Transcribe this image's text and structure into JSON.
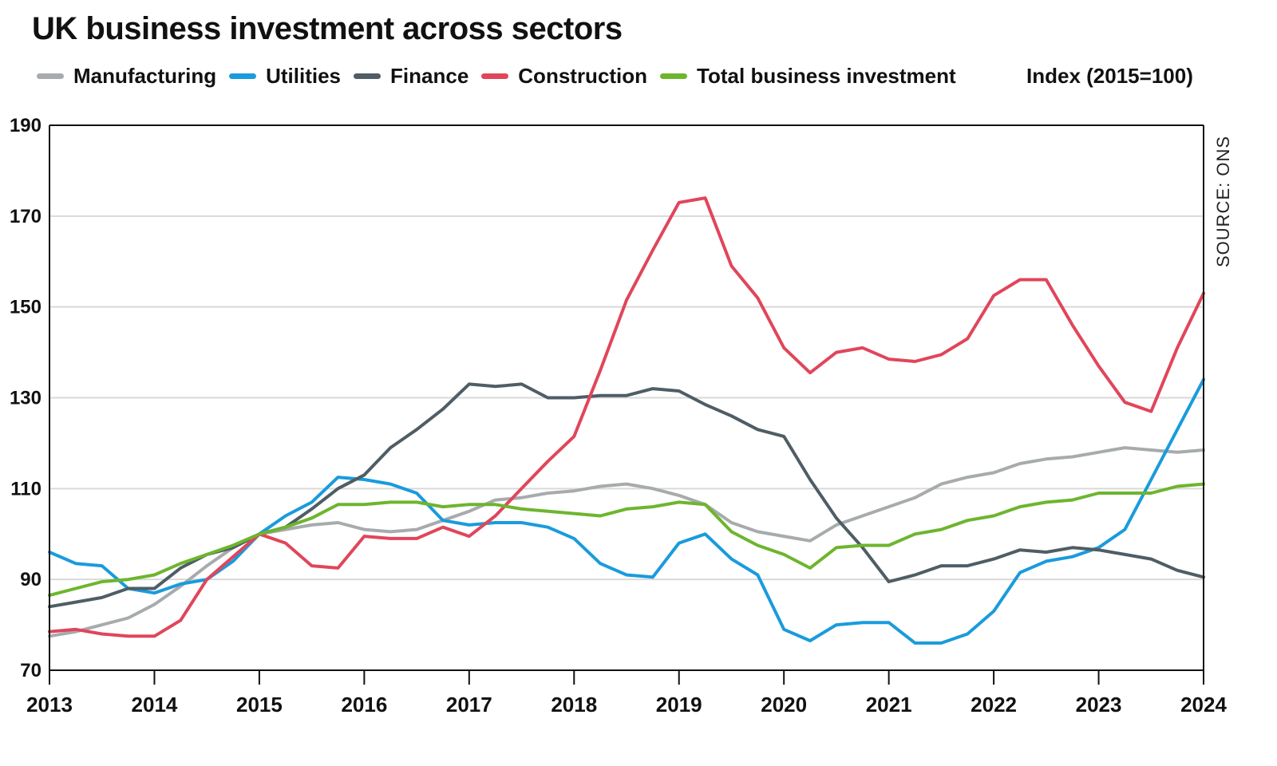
{
  "title": "UK business investment across sectors",
  "units_label": "Index (2015=100)",
  "source_label": "SOURCE: ONS",
  "legend": [
    {
      "name": "Manufacturing",
      "color": "#a7abad"
    },
    {
      "name": "Utilities",
      "color": "#1a9bdc"
    },
    {
      "name": "Finance",
      "color": "#4f5d65"
    },
    {
      "name": "Construction",
      "color": "#e0465b"
    },
    {
      "name": "Total business investment",
      "color": "#6db52e"
    }
  ],
  "chart_data": {
    "type": "line",
    "title": "UK business investment across sectors",
    "xlabel": "",
    "ylabel": "Index (2015=100)",
    "ylim": [
      70,
      190
    ],
    "xlim": [
      2013,
      2024
    ],
    "yticks": [
      70,
      90,
      110,
      130,
      150,
      170,
      190
    ],
    "xticks": [
      "2013",
      "2014",
      "2015",
      "2016",
      "2017",
      "2018",
      "2019",
      "2020",
      "2021",
      "2022",
      "2023",
      "2024"
    ],
    "grid": "horizontal",
    "legend_position": "top",
    "x": [
      2013.0,
      2013.25,
      2013.5,
      2013.75,
      2014.0,
      2014.25,
      2014.5,
      2014.75,
      2015.0,
      2015.25,
      2015.5,
      2015.75,
      2016.0,
      2016.25,
      2016.5,
      2016.75,
      2017.0,
      2017.25,
      2017.5,
      2017.75,
      2018.0,
      2018.25,
      2018.5,
      2018.75,
      2019.0,
      2019.25,
      2019.5,
      2019.75,
      2020.0,
      2020.25,
      2020.5,
      2020.75,
      2021.0,
      2021.25,
      2021.5,
      2021.75,
      2022.0,
      2022.25,
      2022.5,
      2022.75,
      2023.0,
      2023.25,
      2023.5,
      2023.75,
      2024.0
    ],
    "series": [
      {
        "name": "Manufacturing",
        "color": "#a7abad",
        "values": [
          77.5,
          78.5,
          80,
          81.5,
          84.5,
          88.5,
          93,
          97,
          100,
          101,
          102,
          102.5,
          101,
          100.5,
          101,
          103,
          105,
          107.5,
          108,
          109,
          109.5,
          110.5,
          111,
          110,
          108.5,
          106.5,
          102.5,
          100.5,
          99.5,
          98.5,
          102,
          104,
          106,
          108,
          111,
          112.5,
          113.5,
          115.5,
          116.5,
          117,
          118,
          119,
          118.5,
          118,
          118.5
        ]
      },
      {
        "name": "Utilities",
        "color": "#1a9bdc",
        "values": [
          96,
          93.5,
          93,
          88,
          87,
          89,
          90,
          94,
          100,
          104,
          107,
          112.5,
          112,
          111,
          109,
          103,
          102,
          102.5,
          102.5,
          101.5,
          99,
          93.5,
          91,
          90.5,
          98,
          100,
          94.5,
          91,
          79,
          76.5,
          80,
          80.5,
          80.5,
          76,
          76,
          78,
          83,
          91.5,
          94,
          95,
          97,
          101,
          112,
          123,
          134
        ]
      },
      {
        "name": "Finance",
        "color": "#4f5d65",
        "values": [
          84,
          85,
          86,
          88,
          88,
          92.5,
          95.5,
          97,
          100,
          101.5,
          105.5,
          110,
          113,
          119,
          123,
          127.5,
          133,
          132.5,
          133,
          130,
          130,
          130.5,
          130.5,
          132,
          131.5,
          128.5,
          126,
          123,
          121.5,
          112,
          103.5,
          97,
          89.5,
          91,
          93,
          93,
          94.5,
          96.5,
          96,
          97,
          96.5,
          95.5,
          94.5,
          92,
          90.5
        ]
      },
      {
        "name": "Construction",
        "color": "#e0465b",
        "values": [
          78.5,
          79,
          78,
          77.5,
          77.5,
          81,
          90,
          95,
          100,
          98,
          93,
          92.5,
          99.5,
          99,
          99,
          101.5,
          99.5,
          104,
          110,
          116,
          121.5,
          136,
          151.5,
          162.5,
          173,
          174,
          159,
          152,
          141,
          135.5,
          140,
          141,
          138.5,
          138,
          139.5,
          143,
          152.5,
          156,
          156,
          146,
          137,
          129,
          127,
          141,
          153
        ]
      },
      {
        "name": "Total business investment",
        "color": "#6db52e",
        "values": [
          86.5,
          88,
          89.5,
          90,
          91,
          93.5,
          95.5,
          97.5,
          100,
          101.5,
          103.5,
          106.5,
          106.5,
          107,
          107,
          106,
          106.5,
          106.5,
          105.5,
          105,
          104.5,
          104,
          105.5,
          106,
          107,
          106.5,
          100.5,
          97.5,
          95.5,
          92.5,
          97,
          97.5,
          97.5,
          100,
          101,
          103,
          104,
          106,
          107,
          107.5,
          109,
          109,
          109,
          110.5,
          111
        ]
      }
    ]
  }
}
